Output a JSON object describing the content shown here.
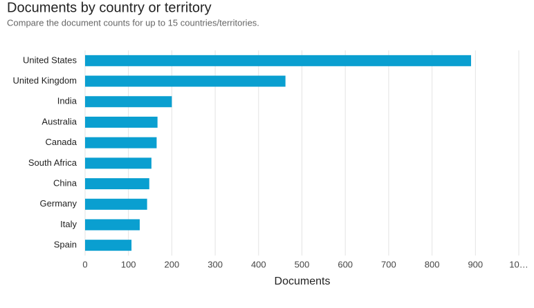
{
  "chart_data": {
    "type": "bar",
    "orientation": "horizontal",
    "title": "Documents by country or territory",
    "subtitle": "Compare the document counts for up to 15 countries/territories.",
    "x_label": "Documents",
    "categories": [
      "United States",
      "United Kingdom",
      "India",
      "Australia",
      "Canada",
      "South Africa",
      "China",
      "Germany",
      "Italy",
      "Spain"
    ],
    "values": [
      890,
      462,
      200,
      167,
      165,
      153,
      148,
      143,
      126,
      107
    ],
    "color": "#0a9fd0",
    "xlim": [
      0,
      1000
    ],
    "xticks": [
      0,
      100,
      200,
      300,
      400,
      500,
      600,
      700,
      800,
      900,
      {
        "value": 1000,
        "label": "10…"
      }
    ],
    "grid": true
  }
}
